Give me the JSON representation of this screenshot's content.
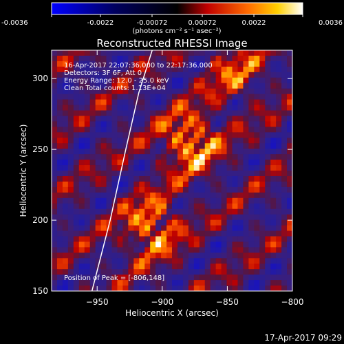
{
  "colorbar": {
    "ticks": [
      "-0.0036",
      "-0.0022",
      "-0.00072",
      "0.00072",
      "0.0022",
      "0.0036"
    ],
    "range": [
      -0.0036,
      0.0036
    ],
    "unit_label": "(photons cm⁻² s⁻¹ asec⁻²)",
    "colormap": "blue-black-red-yellow-white"
  },
  "title": "Reconstructed RHESSI Image",
  "annotations": [
    "16-Apr-2017 22:07:36.000 to 22:17:36.000",
    "Detectors: 3F 6F, Att 0",
    "Energy Range: 12.0 - 25.0 keV",
    "Clean     Total counts: 1.13E+04"
  ],
  "peak_label": "Position of Peak = [-806,148]",
  "footer_timestamp": "17-Apr-2017 09:29",
  "chart_data": {
    "type": "heatmap",
    "title": "Reconstructed RHESSI Image",
    "xlabel": "Heliocentric X (arcsec)",
    "ylabel": "Heliocentric Y (arcsec)",
    "xlim": [
      -985,
      -800
    ],
    "ylim": [
      150,
      320
    ],
    "x_ticks": [
      -950,
      -900,
      -850,
      -800
    ],
    "x_tick_labels": [
      "−950",
      "−900",
      "−850",
      "−800"
    ],
    "y_ticks": [
      150,
      200,
      250,
      300
    ],
    "y_tick_labels": [
      "150",
      "200",
      "250",
      "300"
    ],
    "limb_curve": [
      [
        -954,
        150
      ],
      [
        -940,
        200
      ],
      [
        -928,
        250
      ],
      [
        -918,
        290
      ],
      [
        -906,
        325
      ]
    ],
    "peak": [
      -806,
      148
    ],
    "sources": [
      {
        "x": -878,
        "y": 255,
        "intensity": 1.0
      },
      {
        "x": -908,
        "y": 195,
        "intensity": 0.9
      },
      {
        "x": -845,
        "y": 305,
        "intensity": 0.6
      }
    ]
  }
}
